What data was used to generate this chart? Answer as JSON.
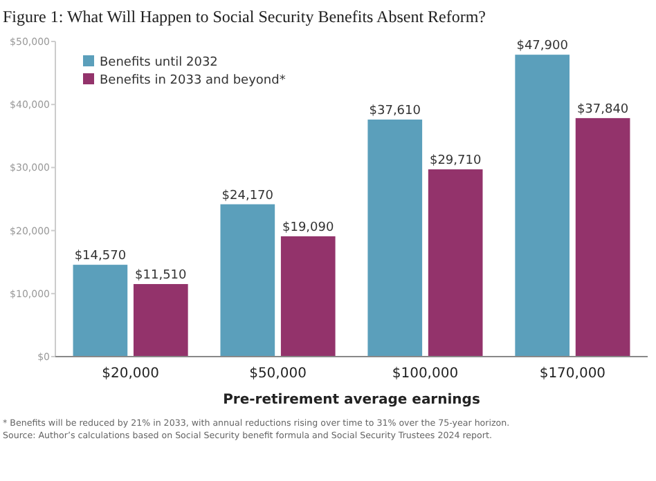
{
  "chart_data": {
    "type": "bar",
    "title": "Figure 1: What Will Happen to Social Security Benefits Absent Reform?",
    "xlabel": "Pre-retirement average earnings",
    "categories": [
      "$20,000",
      "$50,000",
      "$100,000",
      "$170,000"
    ],
    "series": [
      {
        "name": "Benefits until 2032",
        "color": "#5b9fbb",
        "values": [
          14570,
          24170,
          37610,
          47900
        ],
        "value_labels": [
          "$14,570",
          "$24,170",
          "$37,610",
          "$47,900"
        ]
      },
      {
        "name": "Benefits in 2033 and beyond*",
        "color": "#93336b",
        "values": [
          11510,
          19090,
          29710,
          37840
        ],
        "value_labels": [
          "$11,510",
          "$19,090",
          "$29,710",
          "$37,840"
        ]
      }
    ],
    "ylim": [
      0,
      50000
    ],
    "yticks": [
      {
        "value": 0,
        "label": "$0"
      },
      {
        "value": 10000,
        "label": "$10,000"
      },
      {
        "value": 20000,
        "label": "$20,000"
      },
      {
        "value": 30000,
        "label": "$30,000"
      },
      {
        "value": 40000,
        "label": "$40,000"
      },
      {
        "value": 50000,
        "label": "$50,000"
      }
    ],
    "legend": "top left",
    "annotations": [
      "* Benefits will be reduced by 21% in 2033, with annual reductions rising over time to 31% over the 75-year horizon.",
      "Source: Author’s calculations based on Social Security benefit formula and Social Security Trustees 2024 report."
    ]
  }
}
